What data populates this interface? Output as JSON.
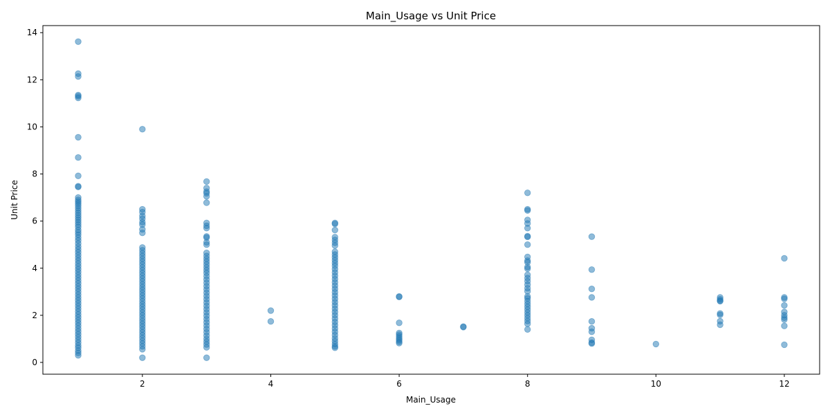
{
  "chart_data": {
    "type": "scatter",
    "title": "Main_Usage vs Unit Price",
    "xlabel": "Main_Usage",
    "ylabel": "Unit Price",
    "xlim": [
      0.45,
      12.55
    ],
    "ylim": [
      -0.5,
      14.3
    ],
    "x_ticks": [
      2,
      4,
      6,
      8,
      10,
      12
    ],
    "y_ticks": [
      0,
      2,
      4,
      6,
      8,
      10,
      12,
      14
    ],
    "grid": false,
    "legend": "none",
    "marker_color": "#1f77b4",
    "marker_alpha": 0.5,
    "points": [
      {
        "x": 1,
        "y": 13.62
      },
      {
        "x": 1,
        "y": 12.26
      },
      {
        "x": 1,
        "y": 12.14
      },
      {
        "x": 1,
        "y": 11.35
      },
      {
        "x": 1,
        "y": 11.3
      },
      {
        "x": 1,
        "y": 11.23
      },
      {
        "x": 1,
        "y": 9.56
      },
      {
        "x": 1,
        "y": 8.7
      },
      {
        "x": 1,
        "y": 7.92
      },
      {
        "x": 1,
        "y": 7.48
      },
      {
        "x": 1,
        "y": 7.45
      },
      {
        "x": 1,
        "y": 7.0
      },
      {
        "x": 1,
        "y": 6.9
      },
      {
        "x": 1,
        "y": 6.82
      },
      {
        "x": 1,
        "y": 6.74
      },
      {
        "x": 1,
        "y": 6.65
      },
      {
        "x": 1,
        "y": 6.55
      },
      {
        "x": 1,
        "y": 6.45
      },
      {
        "x": 1,
        "y": 6.35
      },
      {
        "x": 1,
        "y": 6.25
      },
      {
        "x": 1,
        "y": 6.15
      },
      {
        "x": 1,
        "y": 6.05
      },
      {
        "x": 1,
        "y": 5.95
      },
      {
        "x": 1,
        "y": 5.85
      },
      {
        "x": 1,
        "y": 5.75
      },
      {
        "x": 1,
        "y": 5.62
      },
      {
        "x": 1,
        "y": 5.52
      },
      {
        "x": 1,
        "y": 5.42
      },
      {
        "x": 1,
        "y": 5.3
      },
      {
        "x": 1,
        "y": 5.18
      },
      {
        "x": 1,
        "y": 5.05
      },
      {
        "x": 1,
        "y": 4.92
      },
      {
        "x": 1,
        "y": 4.8
      },
      {
        "x": 1,
        "y": 4.68
      },
      {
        "x": 1,
        "y": 4.56
      },
      {
        "x": 1,
        "y": 4.44
      },
      {
        "x": 1,
        "y": 4.32
      },
      {
        "x": 1,
        "y": 4.2
      },
      {
        "x": 1,
        "y": 4.08
      },
      {
        "x": 1,
        "y": 3.96
      },
      {
        "x": 1,
        "y": 3.84
      },
      {
        "x": 1,
        "y": 3.72
      },
      {
        "x": 1,
        "y": 3.6
      },
      {
        "x": 1,
        "y": 3.48
      },
      {
        "x": 1,
        "y": 3.36
      },
      {
        "x": 1,
        "y": 3.24
      },
      {
        "x": 1,
        "y": 3.12
      },
      {
        "x": 1,
        "y": 3.0
      },
      {
        "x": 1,
        "y": 2.88
      },
      {
        "x": 1,
        "y": 2.76
      },
      {
        "x": 1,
        "y": 2.64
      },
      {
        "x": 1,
        "y": 2.52
      },
      {
        "x": 1,
        "y": 2.4
      },
      {
        "x": 1,
        "y": 2.28
      },
      {
        "x": 1,
        "y": 2.16
      },
      {
        "x": 1,
        "y": 2.04
      },
      {
        "x": 1,
        "y": 1.92
      },
      {
        "x": 1,
        "y": 1.8
      },
      {
        "x": 1,
        "y": 1.68
      },
      {
        "x": 1,
        "y": 1.56
      },
      {
        "x": 1,
        "y": 1.44
      },
      {
        "x": 1,
        "y": 1.32
      },
      {
        "x": 1,
        "y": 1.2
      },
      {
        "x": 1,
        "y": 1.08
      },
      {
        "x": 1,
        "y": 0.96
      },
      {
        "x": 1,
        "y": 0.84
      },
      {
        "x": 1,
        "y": 0.72
      },
      {
        "x": 1,
        "y": 0.62
      },
      {
        "x": 1,
        "y": 0.5
      },
      {
        "x": 1,
        "y": 0.4
      },
      {
        "x": 1,
        "y": 0.3
      },
      {
        "x": 2,
        "y": 9.9
      },
      {
        "x": 2,
        "y": 6.5
      },
      {
        "x": 2,
        "y": 6.38
      },
      {
        "x": 2,
        "y": 6.22
      },
      {
        "x": 2,
        "y": 6.1
      },
      {
        "x": 2,
        "y": 5.95
      },
      {
        "x": 2,
        "y": 5.85
      },
      {
        "x": 2,
        "y": 5.65
      },
      {
        "x": 2,
        "y": 5.5
      },
      {
        "x": 2,
        "y": 4.88
      },
      {
        "x": 2,
        "y": 4.76
      },
      {
        "x": 2,
        "y": 4.64
      },
      {
        "x": 2,
        "y": 4.52
      },
      {
        "x": 2,
        "y": 4.4
      },
      {
        "x": 2,
        "y": 4.28
      },
      {
        "x": 2,
        "y": 4.16
      },
      {
        "x": 2,
        "y": 4.04
      },
      {
        "x": 2,
        "y": 3.92
      },
      {
        "x": 2,
        "y": 3.8
      },
      {
        "x": 2,
        "y": 3.68
      },
      {
        "x": 2,
        "y": 3.56
      },
      {
        "x": 2,
        "y": 3.44
      },
      {
        "x": 2,
        "y": 3.32
      },
      {
        "x": 2,
        "y": 3.2
      },
      {
        "x": 2,
        "y": 3.08
      },
      {
        "x": 2,
        "y": 2.96
      },
      {
        "x": 2,
        "y": 2.84
      },
      {
        "x": 2,
        "y": 2.72
      },
      {
        "x": 2,
        "y": 2.6
      },
      {
        "x": 2,
        "y": 2.48
      },
      {
        "x": 2,
        "y": 2.36
      },
      {
        "x": 2,
        "y": 2.24
      },
      {
        "x": 2,
        "y": 2.12
      },
      {
        "x": 2,
        "y": 2.0
      },
      {
        "x": 2,
        "y": 1.88
      },
      {
        "x": 2,
        "y": 1.76
      },
      {
        "x": 2,
        "y": 1.64
      },
      {
        "x": 2,
        "y": 1.52
      },
      {
        "x": 2,
        "y": 1.4
      },
      {
        "x": 2,
        "y": 1.28
      },
      {
        "x": 2,
        "y": 1.16
      },
      {
        "x": 2,
        "y": 1.04
      },
      {
        "x": 2,
        "y": 0.92
      },
      {
        "x": 2,
        "y": 0.8
      },
      {
        "x": 2,
        "y": 0.68
      },
      {
        "x": 2,
        "y": 0.56
      },
      {
        "x": 2,
        "y": 0.2
      },
      {
        "x": 3,
        "y": 7.68
      },
      {
        "x": 3,
        "y": 7.4
      },
      {
        "x": 3,
        "y": 7.25
      },
      {
        "x": 3,
        "y": 7.18
      },
      {
        "x": 3,
        "y": 7.05
      },
      {
        "x": 3,
        "y": 6.78
      },
      {
        "x": 3,
        "y": 5.92
      },
      {
        "x": 3,
        "y": 5.8
      },
      {
        "x": 3,
        "y": 5.7
      },
      {
        "x": 3,
        "y": 5.35
      },
      {
        "x": 3,
        "y": 5.3
      },
      {
        "x": 3,
        "y": 5.1
      },
      {
        "x": 3,
        "y": 5.0
      },
      {
        "x": 3,
        "y": 4.65
      },
      {
        "x": 3,
        "y": 4.52
      },
      {
        "x": 3,
        "y": 4.4
      },
      {
        "x": 3,
        "y": 4.28
      },
      {
        "x": 3,
        "y": 4.16
      },
      {
        "x": 3,
        "y": 4.04
      },
      {
        "x": 3,
        "y": 3.92
      },
      {
        "x": 3,
        "y": 3.8
      },
      {
        "x": 3,
        "y": 3.66
      },
      {
        "x": 3,
        "y": 3.52
      },
      {
        "x": 3,
        "y": 3.38
      },
      {
        "x": 3,
        "y": 3.24
      },
      {
        "x": 3,
        "y": 3.1
      },
      {
        "x": 3,
        "y": 2.96
      },
      {
        "x": 3,
        "y": 2.82
      },
      {
        "x": 3,
        "y": 2.68
      },
      {
        "x": 3,
        "y": 2.54
      },
      {
        "x": 3,
        "y": 2.4
      },
      {
        "x": 3,
        "y": 2.26
      },
      {
        "x": 3,
        "y": 2.12
      },
      {
        "x": 3,
        "y": 1.98
      },
      {
        "x": 3,
        "y": 1.84
      },
      {
        "x": 3,
        "y": 1.7
      },
      {
        "x": 3,
        "y": 1.56
      },
      {
        "x": 3,
        "y": 1.42
      },
      {
        "x": 3,
        "y": 1.28
      },
      {
        "x": 3,
        "y": 1.14
      },
      {
        "x": 3,
        "y": 1.0
      },
      {
        "x": 3,
        "y": 0.88
      },
      {
        "x": 3,
        "y": 0.76
      },
      {
        "x": 3,
        "y": 0.64
      },
      {
        "x": 3,
        "y": 0.2
      },
      {
        "x": 4,
        "y": 2.2
      },
      {
        "x": 4,
        "y": 1.74
      },
      {
        "x": 5,
        "y": 5.92
      },
      {
        "x": 5,
        "y": 5.88
      },
      {
        "x": 5,
        "y": 5.62
      },
      {
        "x": 5,
        "y": 5.32
      },
      {
        "x": 5,
        "y": 5.2
      },
      {
        "x": 5,
        "y": 5.08
      },
      {
        "x": 5,
        "y": 4.96
      },
      {
        "x": 5,
        "y": 4.7
      },
      {
        "x": 5,
        "y": 4.58
      },
      {
        "x": 5,
        "y": 4.46
      },
      {
        "x": 5,
        "y": 4.34
      },
      {
        "x": 5,
        "y": 4.22
      },
      {
        "x": 5,
        "y": 4.1
      },
      {
        "x": 5,
        "y": 3.96
      },
      {
        "x": 5,
        "y": 3.82
      },
      {
        "x": 5,
        "y": 3.68
      },
      {
        "x": 5,
        "y": 3.54
      },
      {
        "x": 5,
        "y": 3.4
      },
      {
        "x": 5,
        "y": 3.26
      },
      {
        "x": 5,
        "y": 3.12
      },
      {
        "x": 5,
        "y": 2.98
      },
      {
        "x": 5,
        "y": 2.84
      },
      {
        "x": 5,
        "y": 2.7
      },
      {
        "x": 5,
        "y": 2.56
      },
      {
        "x": 5,
        "y": 2.42
      },
      {
        "x": 5,
        "y": 2.28
      },
      {
        "x": 5,
        "y": 2.14
      },
      {
        "x": 5,
        "y": 2.0
      },
      {
        "x": 5,
        "y": 1.86
      },
      {
        "x": 5,
        "y": 1.72
      },
      {
        "x": 5,
        "y": 1.58
      },
      {
        "x": 5,
        "y": 1.44
      },
      {
        "x": 5,
        "y": 1.3
      },
      {
        "x": 5,
        "y": 1.16
      },
      {
        "x": 5,
        "y": 1.02
      },
      {
        "x": 5,
        "y": 0.9
      },
      {
        "x": 5,
        "y": 0.78
      },
      {
        "x": 5,
        "y": 0.68
      },
      {
        "x": 5,
        "y": 0.62
      },
      {
        "x": 6,
        "y": 2.8
      },
      {
        "x": 6,
        "y": 2.78
      },
      {
        "x": 6,
        "y": 1.68
      },
      {
        "x": 6,
        "y": 1.25
      },
      {
        "x": 6,
        "y": 1.18
      },
      {
        "x": 6,
        "y": 1.1
      },
      {
        "x": 6,
        "y": 1.02
      },
      {
        "x": 6,
        "y": 0.95
      },
      {
        "x": 6,
        "y": 0.88
      },
      {
        "x": 6,
        "y": 0.82
      },
      {
        "x": 7,
        "y": 1.52
      },
      {
        "x": 7,
        "y": 1.5
      },
      {
        "x": 8,
        "y": 7.2
      },
      {
        "x": 8,
        "y": 6.5
      },
      {
        "x": 8,
        "y": 6.45
      },
      {
        "x": 8,
        "y": 6.05
      },
      {
        "x": 8,
        "y": 5.9
      },
      {
        "x": 8,
        "y": 5.7
      },
      {
        "x": 8,
        "y": 5.36
      },
      {
        "x": 8,
        "y": 5.33
      },
      {
        "x": 8,
        "y": 5.0
      },
      {
        "x": 8,
        "y": 4.48
      },
      {
        "x": 8,
        "y": 4.32
      },
      {
        "x": 8,
        "y": 4.25
      },
      {
        "x": 8,
        "y": 4.05
      },
      {
        "x": 8,
        "y": 3.98
      },
      {
        "x": 8,
        "y": 3.72
      },
      {
        "x": 8,
        "y": 3.58
      },
      {
        "x": 8,
        "y": 3.45
      },
      {
        "x": 8,
        "y": 3.3
      },
      {
        "x": 8,
        "y": 3.15
      },
      {
        "x": 8,
        "y": 3.02
      },
      {
        "x": 8,
        "y": 2.8
      },
      {
        "x": 8,
        "y": 2.72
      },
      {
        "x": 8,
        "y": 2.6
      },
      {
        "x": 8,
        "y": 2.48
      },
      {
        "x": 8,
        "y": 2.36
      },
      {
        "x": 8,
        "y": 2.24
      },
      {
        "x": 8,
        "y": 2.12
      },
      {
        "x": 8,
        "y": 2.0
      },
      {
        "x": 8,
        "y": 1.88
      },
      {
        "x": 8,
        "y": 1.76
      },
      {
        "x": 8,
        "y": 1.64
      },
      {
        "x": 8,
        "y": 1.4
      },
      {
        "x": 9,
        "y": 5.34
      },
      {
        "x": 9,
        "y": 3.94
      },
      {
        "x": 9,
        "y": 3.12
      },
      {
        "x": 9,
        "y": 2.76
      },
      {
        "x": 9,
        "y": 1.74
      },
      {
        "x": 9,
        "y": 1.45
      },
      {
        "x": 9,
        "y": 1.3
      },
      {
        "x": 9,
        "y": 0.96
      },
      {
        "x": 9,
        "y": 0.84
      },
      {
        "x": 9,
        "y": 0.8
      },
      {
        "x": 10,
        "y": 0.78
      },
      {
        "x": 11,
        "y": 2.76
      },
      {
        "x": 11,
        "y": 2.68
      },
      {
        "x": 11,
        "y": 2.62
      },
      {
        "x": 11,
        "y": 2.6
      },
      {
        "x": 11,
        "y": 2.08
      },
      {
        "x": 11,
        "y": 2.02
      },
      {
        "x": 11,
        "y": 1.75
      },
      {
        "x": 11,
        "y": 1.6
      },
      {
        "x": 12,
        "y": 4.42
      },
      {
        "x": 12,
        "y": 2.76
      },
      {
        "x": 12,
        "y": 2.7
      },
      {
        "x": 12,
        "y": 2.42
      },
      {
        "x": 12,
        "y": 2.14
      },
      {
        "x": 12,
        "y": 2.0
      },
      {
        "x": 12,
        "y": 1.9
      },
      {
        "x": 12,
        "y": 1.82
      },
      {
        "x": 12,
        "y": 1.55
      },
      {
        "x": 12,
        "y": 0.75
      }
    ]
  }
}
